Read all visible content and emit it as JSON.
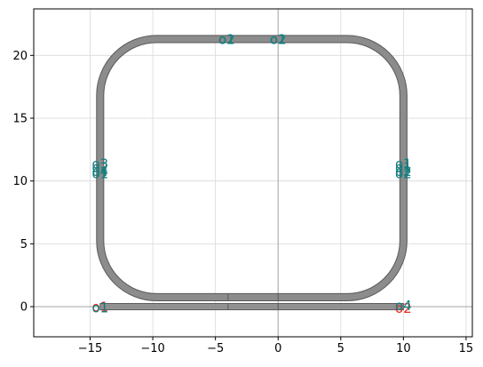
{
  "chart_data": {
    "type": "layout",
    "title": "",
    "xlabel": "",
    "ylabel": "",
    "xlim": [
      -19.5,
      15.5
    ],
    "ylim": [
      -2.4,
      23.7
    ],
    "xticks": [
      -15,
      -10,
      -5,
      0,
      5,
      10,
      15
    ],
    "yticks": [
      0,
      5,
      10,
      15,
      20
    ],
    "xtick_labels": [
      "−15",
      "−10",
      "−5",
      "0",
      "5",
      "10",
      "15"
    ],
    "ytick_labels": [
      "0",
      "5",
      "10",
      "15",
      "20"
    ],
    "grid": true,
    "colors": {
      "waveguide_fill": "#8c8c8c",
      "waveguide_edge": "#5a5a5a",
      "grid": "#d9d9d9",
      "axis_zero": "#a6a6a6",
      "port_red": "#e8261f",
      "port_teal": "#0f7f80"
    },
    "waveguide_width": 0.5,
    "ring": {
      "x_left": -14.2,
      "x_right": 10.0,
      "y_bottom": 0.75,
      "y_top": 21.3,
      "corner_radius": 4.5,
      "coupler_x": [
        -4.0,
        0.0
      ]
    },
    "bus": {
      "x_start": -14.2,
      "x_end": 10.0,
      "y": 0.0,
      "split_x": [
        -4.0,
        0.0
      ]
    },
    "ports": [
      {
        "label": "o1",
        "x": -14.2,
        "y": 0.0,
        "color": "red"
      },
      {
        "label": "o2",
        "x": 10.0,
        "y": -0.1,
        "color": "red"
      },
      {
        "label": "o1",
        "x": -14.2,
        "y": -0.05,
        "color": "teal"
      },
      {
        "label": "o4",
        "x": 10.0,
        "y": 0.1,
        "color": "teal"
      },
      {
        "label": "o3",
        "x": -14.2,
        "y": 11.4,
        "color": "teal"
      },
      {
        "label": "o2",
        "x": -14.2,
        "y": 11.1,
        "color": "teal"
      },
      {
        "label": "o4",
        "x": -14.2,
        "y": 10.8,
        "color": "teal"
      },
      {
        "label": "o1",
        "x": -14.2,
        "y": 10.6,
        "color": "teal"
      },
      {
        "label": "o1",
        "x": 10.0,
        "y": 11.4,
        "color": "teal"
      },
      {
        "label": "o1",
        "x": 10.0,
        "y": 11.1,
        "color": "teal"
      },
      {
        "label": "o2",
        "x": 10.0,
        "y": 10.8,
        "color": "teal"
      },
      {
        "label": "o2",
        "x": 10.0,
        "y": 10.6,
        "color": "teal"
      },
      {
        "label": "o2",
        "x": -4.1,
        "y": 21.3,
        "color": "teal"
      },
      {
        "label": "o1",
        "x": -4.1,
        "y": 21.3,
        "color": "teal"
      },
      {
        "label": "o2",
        "x": 0.0,
        "y": 21.3,
        "color": "teal"
      },
      {
        "label": "o1",
        "x": 0.0,
        "y": 21.3,
        "color": "teal"
      }
    ]
  }
}
